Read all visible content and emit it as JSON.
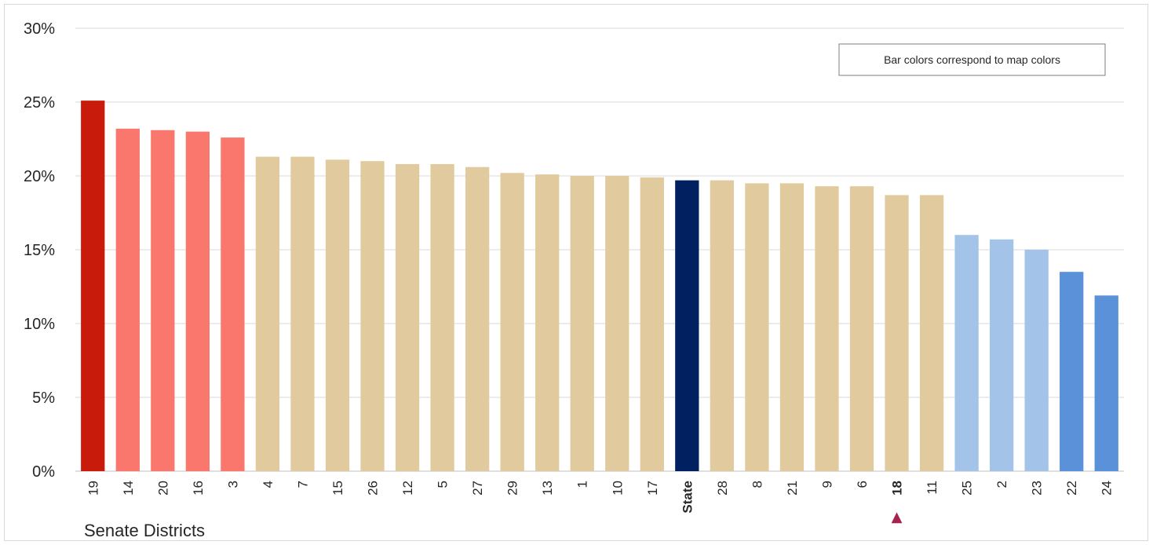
{
  "chart_data": {
    "type": "bar",
    "title": "",
    "xlabel": "Senate Districts",
    "ylabel": "",
    "ylim": [
      0,
      30
    ],
    "yticks": [
      "0%",
      "5%",
      "10%",
      "15%",
      "20%",
      "25%",
      "30%"
    ],
    "grid": true,
    "legend_note": "Bar colors correspond to map colors",
    "highlight_marker": "▲",
    "categories": [
      "19",
      "14",
      "20",
      "16",
      "3",
      "4",
      "7",
      "15",
      "26",
      "12",
      "5",
      "27",
      "29",
      "13",
      "1",
      "10",
      "17",
      "State",
      "28",
      "8",
      "21",
      "9",
      "6",
      "18",
      "11",
      "25",
      "2",
      "23",
      "22",
      "24"
    ],
    "values": [
      25.1,
      23.2,
      23.1,
      23.0,
      22.6,
      21.3,
      21.3,
      21.1,
      21.0,
      20.8,
      20.8,
      20.6,
      20.2,
      20.1,
      20.0,
      20.0,
      19.9,
      19.7,
      19.7,
      19.5,
      19.5,
      19.3,
      19.3,
      18.7,
      18.7,
      16.0,
      15.7,
      15.0,
      13.5,
      11.9
    ],
    "colors": [
      "#c81b0c",
      "#fa776d",
      "#fa776d",
      "#fa776d",
      "#fa776d",
      "#e1cb9e",
      "#e1cb9e",
      "#e1cb9e",
      "#e1cb9e",
      "#e1cb9e",
      "#e1cb9e",
      "#e1cb9e",
      "#e1cb9e",
      "#e1cb9e",
      "#e1cb9e",
      "#e1cb9e",
      "#e1cb9e",
      "#002060",
      "#e1cb9e",
      "#e1cb9e",
      "#e1cb9e",
      "#e1cb9e",
      "#e1cb9e",
      "#e1cb9e",
      "#e1cb9e",
      "#a3c3e9",
      "#a3c3e9",
      "#a3c3e9",
      "#5a91d8",
      "#5a91d8"
    ],
    "label_colors": {
      "State": "#002060",
      "18": "#a6234e"
    }
  }
}
